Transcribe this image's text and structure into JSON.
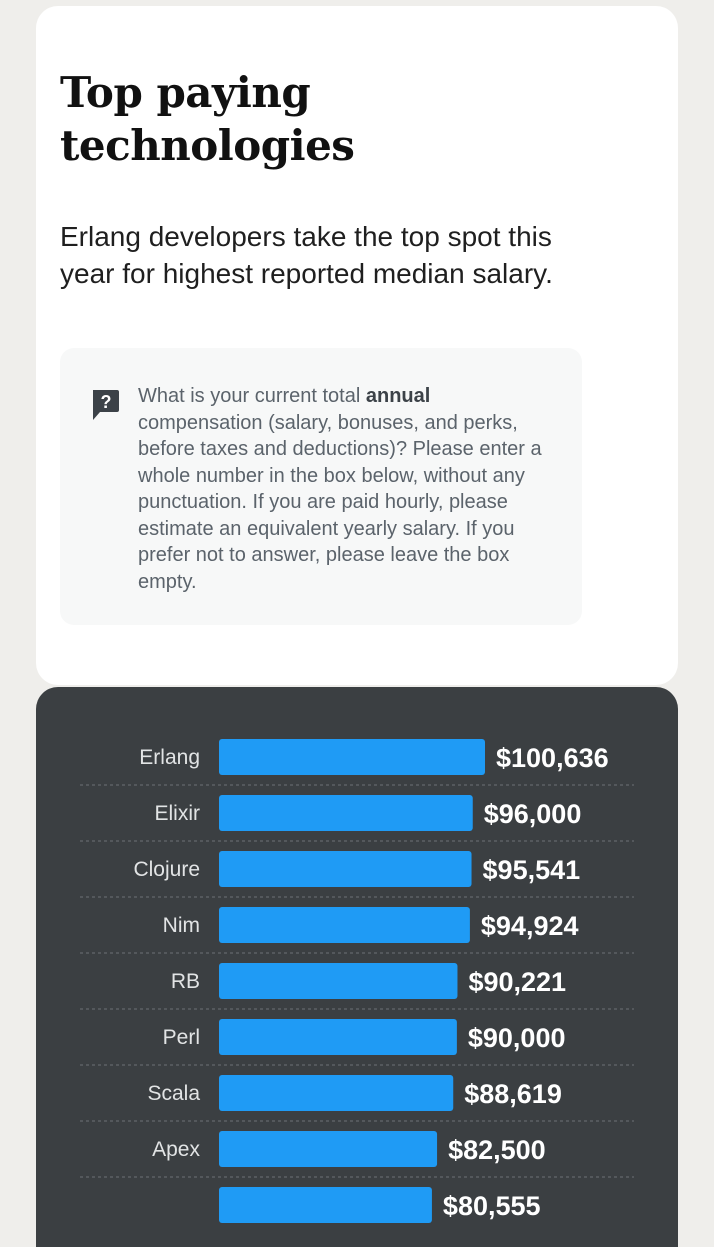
{
  "header": {
    "title": "Top paying technologies",
    "subtitle": "Erlang developers take the top spot this year for highest reported median salary."
  },
  "question": {
    "icon": "question-mark-speech-icon",
    "text_before": "What is your current total ",
    "text_bold": "annual",
    "text_after": " compensation (salary, bonuses, and perks, before taxes and deductions)? Please enter a whole number in the box below, without any punctuation. If you are paid hourly, please estimate an equivalent yearly salary. If you prefer not to answer, please leave the box empty."
  },
  "colors": {
    "bar": "#1f9bf5",
    "panel": "#3b3f42",
    "separator": "#6c7175"
  },
  "chart_data": {
    "type": "bar",
    "orientation": "horizontal",
    "categories": [
      "Erlang",
      "Elixir",
      "Clojure",
      "Nim",
      "RB",
      "Perl",
      "Scala",
      "Apex",
      ""
    ],
    "values": [
      100636,
      96000,
      95541,
      94924,
      90221,
      90000,
      88619,
      82500,
      80555
    ],
    "value_labels": [
      "$100,636",
      "$96,000",
      "$95,541",
      "$94,924",
      "$90,221",
      "$90,000",
      "$88,619",
      "$82,500",
      "$80,555"
    ],
    "title": "",
    "xlabel": "",
    "ylabel": "",
    "grid": false,
    "legend": "none"
  }
}
